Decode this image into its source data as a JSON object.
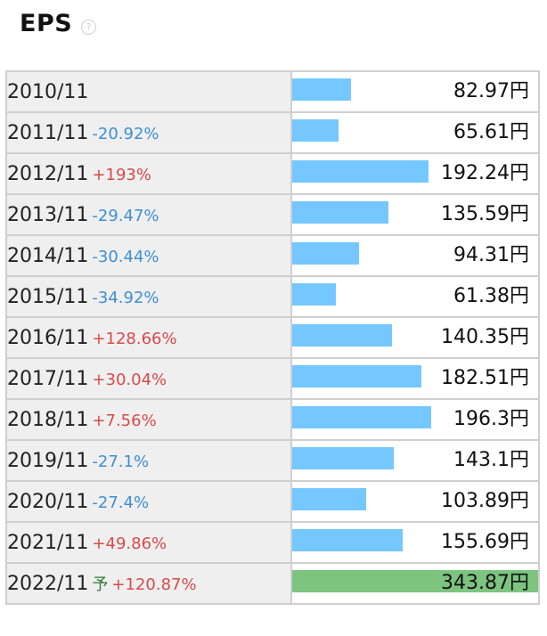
{
  "header": {
    "title": "EPS",
    "help_icon": "question-circle-icon"
  },
  "colors": {
    "bar": "#74c8ff",
    "forecast_bar": "#7cc47f",
    "negative": "#3d8fd6",
    "positive": "#d84a4a",
    "forecast_mark": "#2e7d32"
  },
  "chart_data": {
    "type": "bar",
    "title": "EPS",
    "unit": "円",
    "rows": [
      {
        "period": "2010/11",
        "change": "",
        "forecast": "",
        "value": 82.97,
        "value_label": "82.97円"
      },
      {
        "period": "2011/11",
        "change": "-20.92%",
        "forecast": "",
        "value": 65.61,
        "value_label": "65.61円"
      },
      {
        "period": "2012/11",
        "change": "+193%",
        "forecast": "",
        "value": 192.24,
        "value_label": "192.24円"
      },
      {
        "period": "2013/11",
        "change": "-29.47%",
        "forecast": "",
        "value": 135.59,
        "value_label": "135.59円"
      },
      {
        "period": "2014/11",
        "change": "-30.44%",
        "forecast": "",
        "value": 94.31,
        "value_label": "94.31円"
      },
      {
        "period": "2015/11",
        "change": "-34.92%",
        "forecast": "",
        "value": 61.38,
        "value_label": "61.38円"
      },
      {
        "period": "2016/11",
        "change": "+128.66%",
        "forecast": "",
        "value": 140.35,
        "value_label": "140.35円"
      },
      {
        "period": "2017/11",
        "change": "+30.04%",
        "forecast": "",
        "value": 182.51,
        "value_label": "182.51円"
      },
      {
        "period": "2018/11",
        "change": "+7.56%",
        "forecast": "",
        "value": 196.3,
        "value_label": "196.3円"
      },
      {
        "period": "2019/11",
        "change": "-27.1%",
        "forecast": "",
        "value": 143.1,
        "value_label": "143.1円"
      },
      {
        "period": "2020/11",
        "change": "-27.4%",
        "forecast": "",
        "value": 103.89,
        "value_label": "103.89円"
      },
      {
        "period": "2021/11",
        "change": "+49.86%",
        "forecast": "",
        "value": 155.69,
        "value_label": "155.69円"
      },
      {
        "period": "2022/11",
        "change": "+120.87%",
        "forecast": "予",
        "value": 343.87,
        "value_label": "343.87円"
      }
    ]
  }
}
